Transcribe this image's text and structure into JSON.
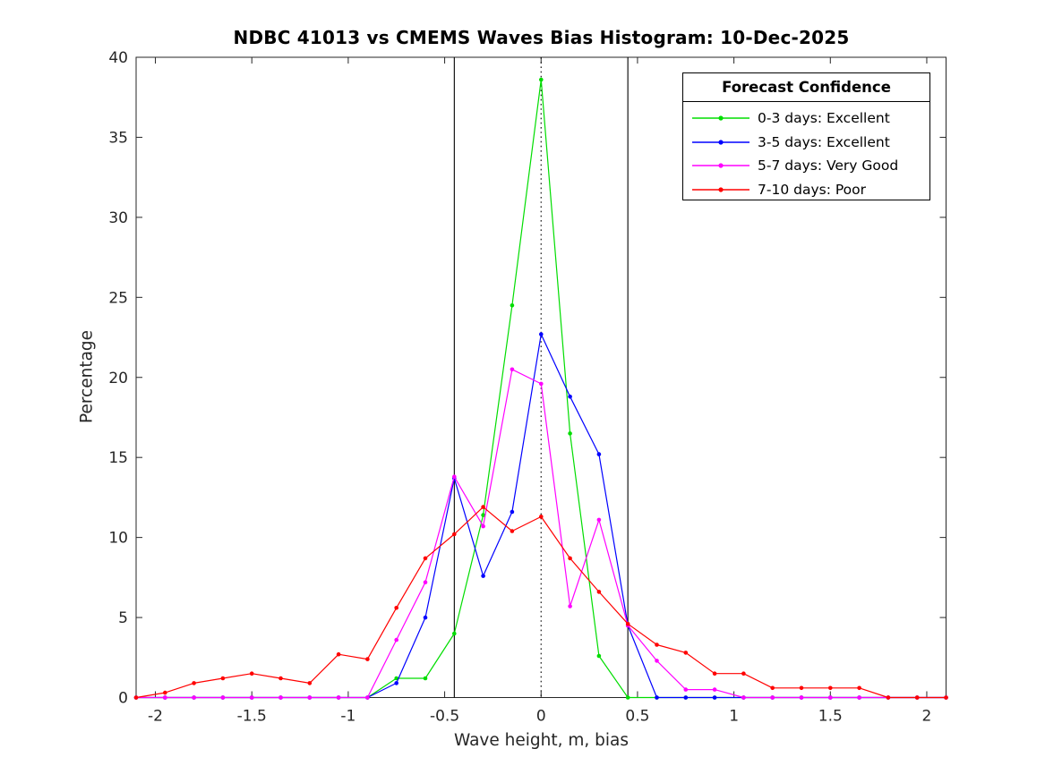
{
  "chart_data": {
    "type": "line",
    "title": "NDBC 41013 vs CMEMS Waves Bias Histogram: 10-Dec-2025",
    "xlabel": "Wave height, m, bias",
    "ylabel": "Percentage",
    "xlim": [
      -2.1,
      2.1
    ],
    "ylim": [
      0,
      40
    ],
    "x_ticks": [
      -2,
      -1.5,
      -1,
      -0.5,
      0,
      0.5,
      1,
      1.5,
      2
    ],
    "x_tick_labels": [
      "-2",
      "-1.5",
      "-1",
      "-0.5",
      "0",
      "0.5",
      "1",
      "1.5",
      "2"
    ],
    "y_ticks": [
      0,
      5,
      10,
      15,
      20,
      25,
      30,
      35,
      40
    ],
    "y_tick_labels": [
      "0",
      "5",
      "10",
      "15",
      "20",
      "25",
      "30",
      "35",
      "40"
    ],
    "grid": false,
    "x": [
      -2.1,
      -1.95,
      -1.8,
      -1.65,
      -1.5,
      -1.35,
      -1.2,
      -1.05,
      -0.9,
      -0.75,
      -0.6,
      -0.45,
      -0.3,
      -0.15,
      0,
      0.15,
      0.3,
      0.45,
      0.6,
      0.75,
      0.9,
      1.05,
      1.2,
      1.35,
      1.5,
      1.65,
      1.8,
      1.95,
      2.1
    ],
    "series": [
      {
        "name": "0-3 days: Excellent",
        "color": "#00dd00",
        "values": [
          0,
          0,
          0,
          0,
          0,
          0,
          0,
          0,
          0,
          1.2,
          1.2,
          4.0,
          11.4,
          24.5,
          38.6,
          16.5,
          2.6,
          0,
          0,
          0,
          0,
          0,
          0,
          0,
          0,
          0,
          0,
          0,
          0
        ]
      },
      {
        "name": "3-5 days: Excellent",
        "color": "#0000ff",
        "values": [
          0,
          0,
          0,
          0,
          0,
          0,
          0,
          0,
          0,
          0.9,
          5.0,
          13.7,
          7.6,
          11.6,
          22.7,
          18.8,
          15.2,
          4.5,
          0,
          0,
          0,
          0,
          0,
          0,
          0,
          0,
          0,
          0,
          0
        ]
      },
      {
        "name": "5-7 days: Very Good",
        "color": "#ff00ff",
        "values": [
          0,
          0,
          0,
          0,
          0,
          0,
          0,
          0,
          0,
          3.6,
          7.2,
          13.8,
          10.7,
          20.5,
          19.6,
          5.7,
          11.1,
          4.5,
          2.3,
          0.5,
          0.5,
          0,
          0,
          0,
          0,
          0,
          0,
          0,
          0
        ]
      },
      {
        "name": "7-10 days: Poor",
        "color": "#ff0000",
        "values": [
          0,
          0.3,
          0.9,
          1.2,
          1.5,
          1.2,
          0.9,
          2.7,
          2.4,
          5.6,
          8.7,
          10.2,
          11.9,
          10.4,
          11.3,
          8.7,
          6.6,
          4.6,
          3.3,
          2.8,
          1.5,
          1.5,
          0.6,
          0.6,
          0.6,
          0.6,
          0,
          0,
          0
        ]
      }
    ],
    "reference_lines": [
      {
        "name": "left-threshold-line",
        "x": -0.45,
        "style": "solid",
        "color": "#000000"
      },
      {
        "name": "zero-bias-line",
        "x": 0,
        "style": "dotted",
        "color": "#000000"
      },
      {
        "name": "right-threshold-line",
        "x": 0.45,
        "style": "solid",
        "color": "#000000"
      }
    ],
    "legend": {
      "title": "Forecast Confidence",
      "position": "top-right"
    }
  }
}
